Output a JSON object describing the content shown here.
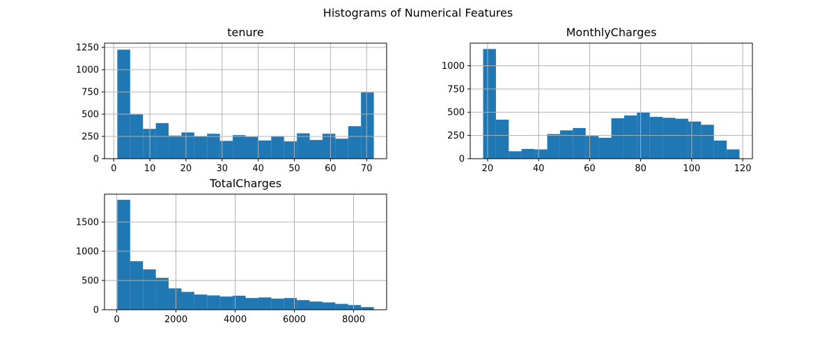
{
  "figure": {
    "title": "Histograms of Numerical Features",
    "bar_color": "#1f77b4",
    "grid": true
  },
  "chart_data": [
    {
      "type": "bar",
      "title": "tenure",
      "xlabel": "",
      "ylabel": "",
      "bin_range": [
        1,
        72
      ],
      "xlim": [
        -2.55,
        75.55
      ],
      "ylim": [
        0,
        1298
      ],
      "xticks": [
        0,
        10,
        20,
        30,
        40,
        50,
        60,
        70
      ],
      "yticks": [
        0,
        250,
        500,
        750,
        1000,
        1250
      ],
      "values": [
        1225,
        500,
        335,
        400,
        260,
        295,
        255,
        280,
        200,
        265,
        245,
        205,
        255,
        195,
        285,
        210,
        280,
        225,
        365,
        745
      ]
    },
    {
      "type": "bar",
      "title": "MonthlyCharges",
      "xlabel": "",
      "ylabel": "",
      "bin_range": [
        18.25,
        118.75
      ],
      "xlim": [
        13.2,
        123.8
      ],
      "ylim": [
        0,
        1243
      ],
      "xticks": [
        20,
        40,
        60,
        80,
        100,
        120
      ],
      "yticks": [
        0,
        250,
        500,
        750,
        1000
      ],
      "values": [
        1180,
        420,
        80,
        105,
        100,
        265,
        305,
        330,
        245,
        225,
        435,
        465,
        495,
        450,
        440,
        430,
        400,
        365,
        195,
        100
      ]
    },
    {
      "type": "bar",
      "title": "TotalCharges",
      "xlabel": "",
      "ylabel": "",
      "bin_range": [
        18.8,
        8684.8
      ],
      "xlim": [
        -414.5,
        9118.1
      ],
      "ylim": [
        0,
        1976
      ],
      "xticks": [
        0,
        2000,
        4000,
        6000,
        8000
      ],
      "yticks": [
        0,
        500,
        1000,
        1500
      ],
      "values": [
        1880,
        830,
        690,
        545,
        365,
        305,
        260,
        245,
        225,
        240,
        200,
        210,
        190,
        200,
        165,
        140,
        125,
        100,
        80,
        45
      ]
    }
  ]
}
